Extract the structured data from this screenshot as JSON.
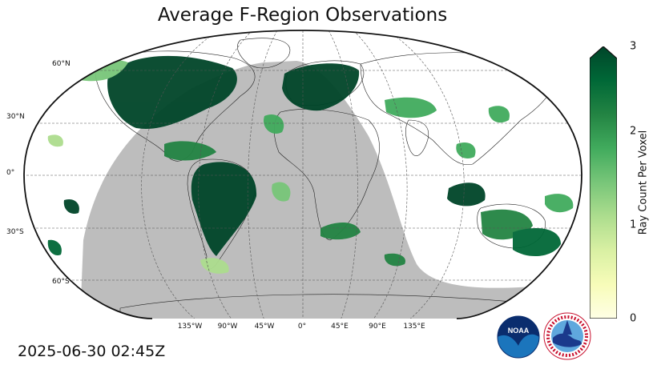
{
  "title": "Average F-Region Observations",
  "timestamp": "2025-06-30 02:45Z",
  "colorbar": {
    "label": "Ray Count Per Voxel",
    "ticks": [
      "0",
      "1",
      "2",
      "3"
    ],
    "min": 0,
    "max": 3,
    "extend": "max",
    "colors": [
      "#ffffe5",
      "#f7fcb9",
      "#d9f0a3",
      "#addd8e",
      "#78c679",
      "#41ab5d",
      "#238443",
      "#006837",
      "#004529"
    ]
  },
  "lat_labels": [
    "60°N",
    "30°N",
    "0°",
    "30°S",
    "60°S"
  ],
  "lon_labels": [
    "135°W",
    "90°W",
    "45°W",
    "0°",
    "45°E",
    "90°E",
    "135°E"
  ],
  "logos": {
    "noaa": "NOAA",
    "nws": "NATIONAL WEATHER SERVICE"
  },
  "night_shading_color": "#bdbdbd"
}
